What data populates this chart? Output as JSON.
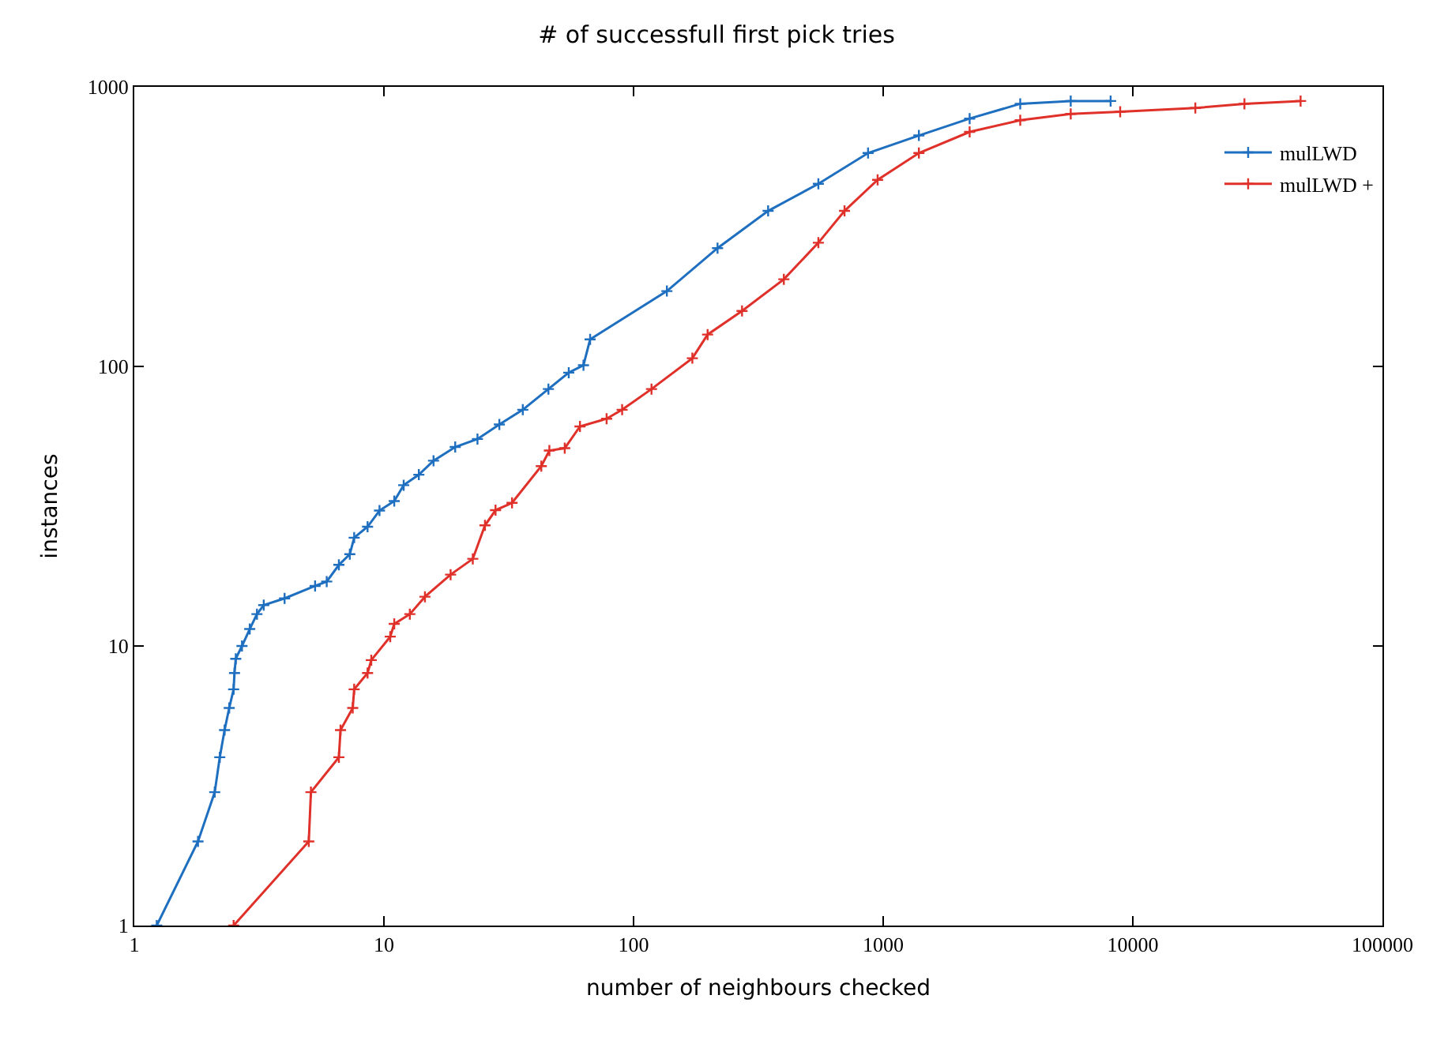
{
  "chart_data": {
    "type": "line",
    "title": "# of successfull first pick tries",
    "xlabel": "number of neighbours checked",
    "ylabel": "instances",
    "log": "xy",
    "xlim": [
      1,
      100000
    ],
    "ylim": [
      1,
      1000
    ],
    "xticks": [
      1,
      10,
      100,
      1000,
      10000,
      100000
    ],
    "yticks": [
      1,
      10,
      100,
      1000
    ],
    "legend": "top right",
    "marker": "cross",
    "line_style": "solid",
    "series": [
      {
        "name": "mulLWD",
        "color": "#1f6fc0",
        "x": [
          1.23,
          1.8,
          2.1,
          2.2,
          2.3,
          2.4,
          2.5,
          2.52,
          2.55,
          2.7,
          2.9,
          3.1,
          3.3,
          4.0,
          5.3,
          5.9,
          6.6,
          7.3,
          7.6,
          8.6,
          9.6,
          11,
          12,
          13.8,
          15.8,
          19.3,
          23.7,
          29,
          36,
          45.6,
          55,
          63,
          67,
          136,
          217,
          346,
          550,
          870,
          1390,
          2220,
          3540,
          5640,
          8150
        ],
        "values": [
          1,
          2,
          3,
          4,
          5,
          6,
          7,
          8,
          9,
          10,
          11.5,
          13,
          14,
          14.8,
          16.4,
          17,
          19.5,
          21.3,
          24.4,
          26.7,
          30.5,
          33,
          37.6,
          41,
          46,
          51.5,
          55,
          62,
          70,
          83,
          95,
          101,
          125,
          186,
          265,
          360,
          450,
          580,
          670,
          770,
          870,
          890,
          890
        ]
      },
      {
        "name": "mulLWD +",
        "color": "#e0302a",
        "x": [
          2.5,
          5,
          5.1,
          6.6,
          6.7,
          7.5,
          7.6,
          8.6,
          8.9,
          10.6,
          11,
          12.7,
          14.6,
          18.5,
          22.7,
          25.4,
          28,
          32.6,
          42.7,
          46,
          53,
          61,
          78,
          90,
          118,
          172,
          198,
          272,
          400,
          550,
          700,
          950,
          1390,
          2220,
          3540,
          5640,
          8900,
          17800,
          28000,
          47000
        ],
        "values": [
          1,
          2,
          3,
          4,
          5,
          6,
          7,
          8,
          8.9,
          10.8,
          12,
          13,
          15,
          18,
          20.5,
          27,
          30.6,
          32.5,
          44,
          50,
          51,
          61,
          65,
          70,
          83,
          107,
          130,
          158,
          205,
          277,
          360,
          465,
          580,
          690,
          760,
          800,
          815,
          840,
          870,
          890
        ]
      }
    ]
  }
}
